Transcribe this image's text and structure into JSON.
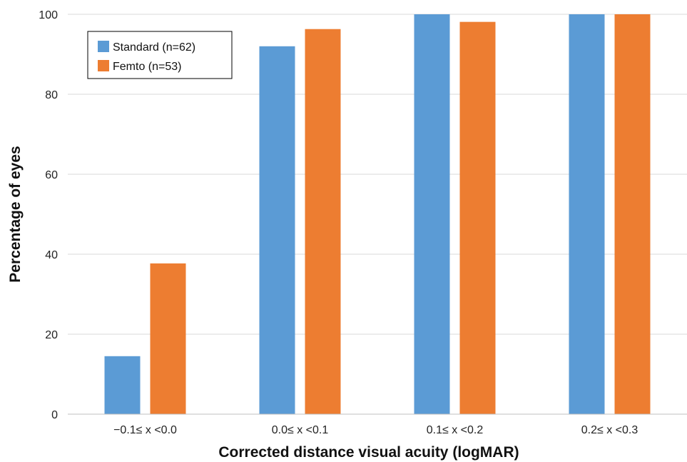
{
  "chart_data": {
    "type": "bar",
    "title": "",
    "xlabel": "Corrected distance visual acuity (logMAR)",
    "ylabel": "Percentage of eyes",
    "categories": [
      "−0.1≤ x <0.0",
      "0.0≤ x <0.1",
      "0.1≤ x <0.2",
      "0.2≤ x <0.3"
    ],
    "series": [
      {
        "name": "Standard (n=62)",
        "color": "#5B9BD5",
        "values": [
          14.5,
          92.0,
          100,
          100
        ]
      },
      {
        "name": "Femto (n=53)",
        "color": "#ED7D31",
        "values": [
          37.7,
          96.3,
          98.1,
          100
        ]
      }
    ],
    "ylim": [
      0,
      100
    ],
    "yticks": [
      0,
      20,
      40,
      60,
      80,
      100
    ],
    "grid": true,
    "legend_position": "top-left"
  }
}
